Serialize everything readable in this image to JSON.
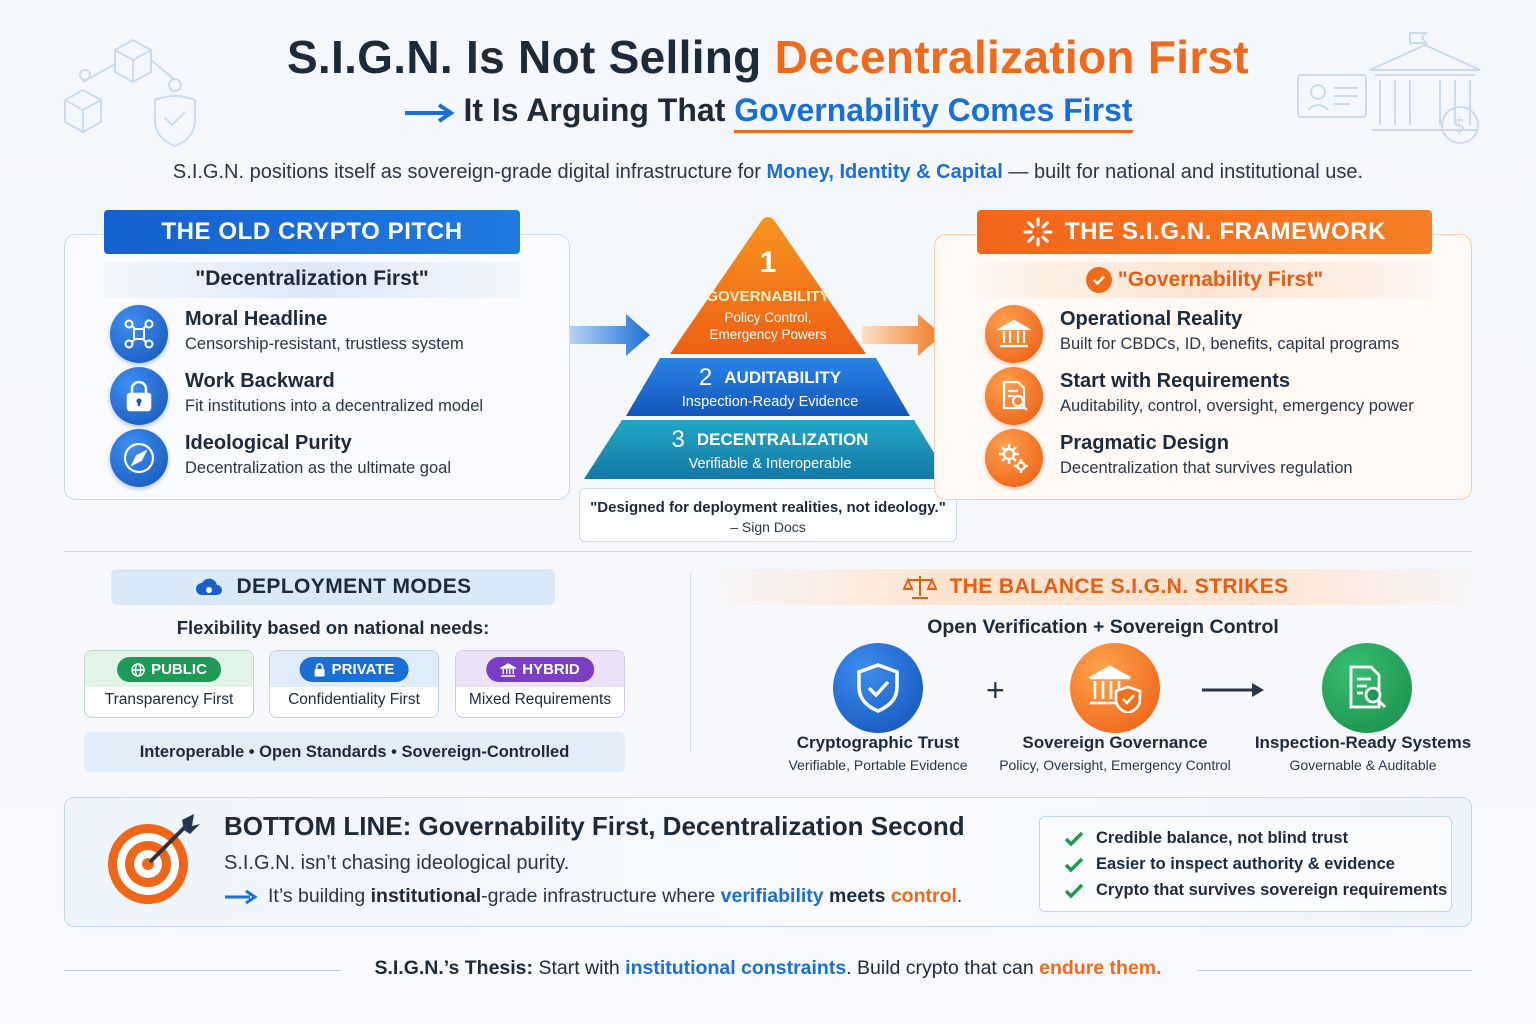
{
  "header": {
    "title_part1": "S.I.G.N. Is Not Selling ",
    "title_part2": "Decentralization First",
    "subtitle_part1": "It Is Arguing That ",
    "subtitle_part2": "Governability Comes First",
    "intro_part1": "S.I.G.N. positions itself as sovereign-grade digital infrastructure for ",
    "intro_highlight": "Money, Identity & Capital",
    "intro_part2": " — built for national and institutional use."
  },
  "old_pitch": {
    "tab": "THE OLD CRYPTO PITCH",
    "subhead": "\"Decentralization First\"",
    "items": [
      {
        "icon": "network-icon",
        "title": "Moral Headline",
        "desc": "Censorship-resistant, trustless system"
      },
      {
        "icon": "lock-icon",
        "title": "Work Backward",
        "desc": "Fit institutions into a decentralized model"
      },
      {
        "icon": "compass-icon",
        "title": "Ideological Purity",
        "desc": "Decentralization as the ultimate goal"
      }
    ]
  },
  "pyramid": {
    "levels": [
      {
        "num": "1",
        "title": "GOVERNABILITY",
        "desc": "Policy Control, Emergency Powers",
        "color": "#f06a1a"
      },
      {
        "num": "2",
        "title": "AUDITABILITY",
        "desc": "Inspection-Ready Evidence",
        "color": "#1a6fd6"
      },
      {
        "num": "3",
        "title": "DECENTRALIZATION",
        "desc": "Verifiable & Interoperable",
        "color": "#1796b8"
      }
    ],
    "quote": "\"Designed for deployment realities, not ideology.\"",
    "quote_source": "– Sign Docs"
  },
  "framework": {
    "tab": "THE S.I.G.N. FRAMEWORK",
    "subhead": "\"Governability First\"",
    "items": [
      {
        "icon": "bank-icon",
        "title": "Operational Reality",
        "desc": "Built for CBDCs, ID, benefits, capital programs"
      },
      {
        "icon": "document-search-icon",
        "title": "Start with Requirements",
        "desc": "Auditability, control, oversight, emergency power"
      },
      {
        "icon": "gears-icon",
        "title": "Pragmatic Design",
        "desc": "Decentralization that survives regulation"
      }
    ]
  },
  "deployment": {
    "heading": "DEPLOYMENT MODES",
    "subheading": "Flexibility based on national needs:",
    "modes": [
      {
        "pill": "PUBLIC",
        "label": "Transparency First",
        "color": "#1f9a55"
      },
      {
        "pill": "PRIVATE",
        "label": "Confidentiality First",
        "color": "#1a6fd6"
      },
      {
        "pill": "HYBRID",
        "label": "Mixed Requirements",
        "color": "#7a3fc4"
      }
    ],
    "footer": "Interoperable  •  Open Standards  •  Sovereign-Controlled"
  },
  "balance": {
    "heading": "THE BALANCE S.I.G.N. STRIKES",
    "subheading": "Open Verification + Sovereign Control",
    "plus": "+",
    "items": [
      {
        "icon": "shield-check-icon",
        "title": "Cryptographic Trust",
        "desc": "Verifiable, Portable Evidence"
      },
      {
        "icon": "bank-shield-icon",
        "title": "Sovereign Governance",
        "desc": "Policy, Oversight, Emergency Control"
      },
      {
        "icon": "document-search-icon",
        "title": "Inspection-Ready Systems",
        "desc": "Governable & Auditable"
      }
    ]
  },
  "bottom_line": {
    "title": "BOTTOM LINE:  Governability First, Decentralization Second",
    "line1": "S.I.G.N. isn’t chasing ideological purity.",
    "line2_a": "It’s building ",
    "line2_b": "institutional",
    "line2_c": "-grade infrastructure where ",
    "line2_d": "verifiability",
    "line2_e": " meets ",
    "line2_f": "control",
    "line2_g": ".",
    "checks": [
      "Credible balance, not blind trust",
      "Easier to inspect authority & evidence",
      "Crypto that survives sovereign requirements"
    ]
  },
  "thesis": {
    "label": "S.I.G.N.’s Thesis:",
    "part1": " Start with ",
    "hl1": "institutional constraints",
    "part2": ". Build crypto that can ",
    "hl2": "endure them."
  },
  "colors": {
    "accent_blue": "#1a6fd6",
    "accent_orange": "#f06a1a",
    "dark": "#1c2a3a"
  }
}
